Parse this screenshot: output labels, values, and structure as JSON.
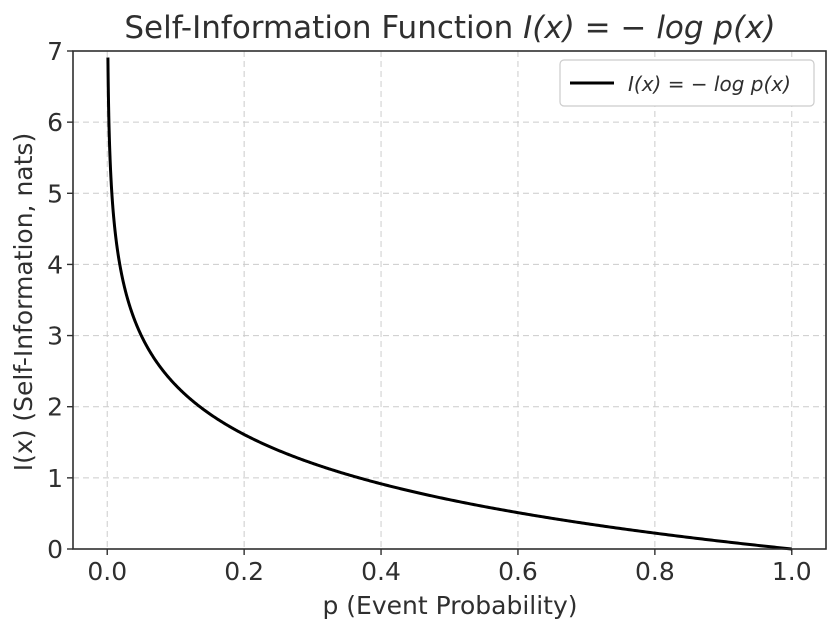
{
  "chart_data": {
    "type": "line",
    "title_plain": "Self-Information Function ",
    "title_math": "I(x) = − log p(x)",
    "xlabel": "p (Event Probability)",
    "ylabel": "I(x) (Self-Information, nats)",
    "xlim": [
      -0.05,
      1.05
    ],
    "ylim": [
      0,
      7
    ],
    "xticks": [
      "0.0",
      "0.2",
      "0.4",
      "0.6",
      "0.8",
      "1.0"
    ],
    "yticks": [
      "0",
      "1",
      "2",
      "3",
      "4",
      "5",
      "6",
      "7"
    ],
    "grid": true,
    "legend_position": "top-right",
    "series": [
      {
        "name": "I(x) = − log p(x)",
        "color": "#000000",
        "function": "-ln(p)",
        "x": [
          0.001,
          0.002,
          0.005,
          0.01,
          0.02,
          0.03,
          0.05,
          0.075,
          0.1,
          0.15,
          0.2,
          0.25,
          0.3,
          0.4,
          0.5,
          0.6,
          0.7,
          0.8,
          0.9,
          1.0
        ],
        "y": [
          6.91,
          6.21,
          5.3,
          4.61,
          3.91,
          3.51,
          3.0,
          2.59,
          2.3,
          1.9,
          1.61,
          1.39,
          1.2,
          0.92,
          0.69,
          0.51,
          0.36,
          0.22,
          0.11,
          0.0
        ]
      }
    ]
  }
}
